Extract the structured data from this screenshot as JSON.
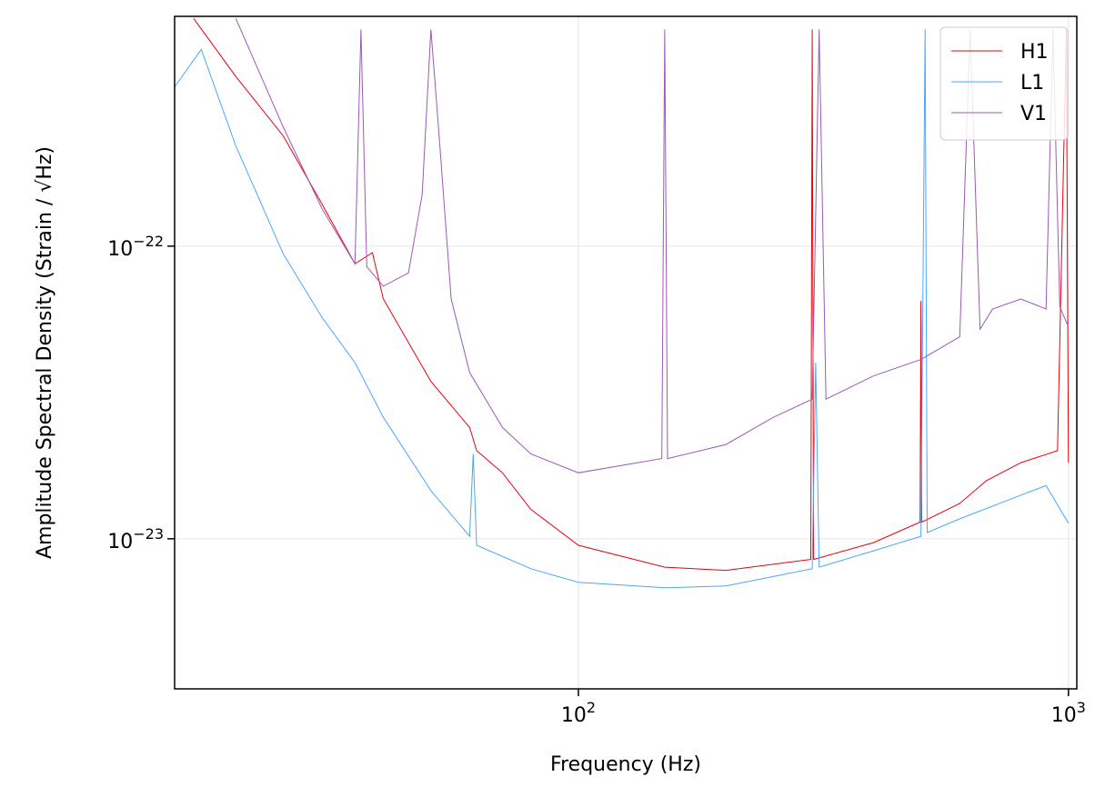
{
  "chart_data": {
    "type": "line",
    "xlabel": "Frequency (Hz)",
    "ylabel": "Amplitude Spectral Density (Strain / √Hz)",
    "log_x": true,
    "log_y": true,
    "grid": true,
    "legend": "upper right",
    "xlim": [
      15,
      1040
    ],
    "ylim": [
      3.07e-24,
      6.1e-22
    ],
    "xticks": [
      {
        "value": 100,
        "label": "10^2"
      },
      {
        "value": 1000,
        "label": "10^3"
      }
    ],
    "yticks": [
      {
        "value": 1e-23,
        "label": "10^−23"
      },
      {
        "value": 1e-22,
        "label": "10^−22"
      }
    ],
    "series": [
      {
        "name": "H1",
        "color": "#e8000b",
        "x": [
          16.4,
          20,
          25,
          30,
          35,
          38,
          40,
          50,
          60,
          62,
          70,
          80,
          100,
          150,
          200,
          298,
          300,
          302,
          400,
          498,
          500,
          502,
          600,
          680,
          800,
          950,
          990,
          1000
        ],
        "values": [
          6e-22,
          3.8e-22,
          2.38e-22,
          1.39e-22,
          8.7e-23,
          9.5e-23,
          6.6e-23,
          3.45e-23,
          2.4e-23,
          2e-23,
          1.68e-23,
          1.26e-23,
          9.5e-24,
          8e-24,
          7.8e-24,
          8.5e-24,
          5.5e-22,
          8.5e-24,
          9.7e-24,
          1.14e-23,
          6.5e-23,
          1.14e-23,
          1.32e-23,
          1.58e-23,
          1.82e-23,
          2e-23,
          5.5e-22,
          1.82e-23
        ]
      },
      {
        "name": "L1",
        "color": "#4ba6ff",
        "x": [
          15,
          17,
          20,
          25,
          30,
          35,
          40,
          50,
          60,
          61,
          62,
          80,
          100,
          150,
          200,
          300,
          305,
          310,
          400,
          500,
          510,
          515,
          600,
          800,
          900,
          1000
        ],
        "values": [
          3.5e-22,
          4.7e-22,
          2.2e-22,
          9.4e-23,
          5.7e-23,
          4e-23,
          2.6e-23,
          1.46e-23,
          1.02e-23,
          1.95e-23,
          9.5e-24,
          7.9e-24,
          7.1e-24,
          6.8e-24,
          6.9e-24,
          7.9e-24,
          4e-23,
          8e-24,
          9.1e-24,
          1.02e-23,
          5.5e-22,
          1.05e-23,
          1.17e-23,
          1.41e-23,
          1.52e-23,
          1.13e-23
        ]
      },
      {
        "name": "V1",
        "color": "#9b59b6",
        "x": [
          20,
          25,
          30,
          35,
          36,
          37,
          40,
          45,
          48,
          50,
          52,
          55,
          60,
          70,
          80,
          100,
          148,
          150,
          152,
          200,
          250,
          300,
          310,
          320,
          400,
          500,
          600,
          630,
          660,
          700,
          800,
          900,
          930,
          960,
          1000
        ],
        "values": [
          6e-22,
          2.55e-22,
          1.34e-22,
          8.7e-23,
          5.5e-22,
          8.5e-23,
          7.3e-23,
          8.1e-23,
          1.5e-22,
          5.5e-22,
          2.37e-22,
          6.6e-23,
          3.7e-23,
          2.4e-23,
          1.95e-23,
          1.68e-23,
          1.88e-23,
          5.5e-22,
          1.88e-23,
          2.1e-23,
          2.6e-23,
          3e-23,
          5.5e-22,
          3e-23,
          3.6e-23,
          4.1e-23,
          4.9e-23,
          5.5e-22,
          5.2e-23,
          6.1e-23,
          6.6e-23,
          6.1e-23,
          5.5e-22,
          6.2e-23,
          5.3e-23
        ]
      }
    ]
  }
}
